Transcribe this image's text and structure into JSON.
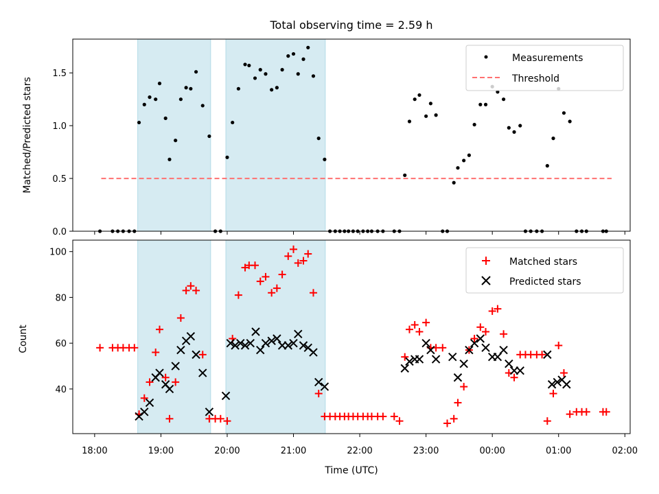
{
  "chart_data": [
    {
      "type": "scatter",
      "title": "Total observing time = 2.59 h",
      "xlabel": "",
      "ylabel": "Matched/Predicted stars",
      "xlim_hours": [
        17.67,
        26.08
      ],
      "ylim": [
        0,
        1.82
      ],
      "yticks": [
        0.0,
        0.5,
        1.0,
        1.5
      ],
      "ytick_labels": [
        "0.0",
        "0.5",
        "1.0",
        "1.5"
      ],
      "legend_position": "top-right",
      "shaded_intervals_hours": [
        [
          18.65,
          19.75
        ],
        [
          19.98,
          21.48
        ]
      ],
      "shade_color": "#add8e6",
      "threshold": {
        "name": "Threshold",
        "value": 0.5,
        "x_range_hours": [
          18.1,
          25.8
        ],
        "color": "#ff7070"
      },
      "series": [
        {
          "name": "Measurements",
          "color": "#000000",
          "marker": "dot",
          "x_hours": [
            18.08,
            18.27,
            18.35,
            18.43,
            18.52,
            18.6,
            18.67,
            18.75,
            18.83,
            18.92,
            18.98,
            19.07,
            19.13,
            19.22,
            19.3,
            19.38,
            19.45,
            19.53,
            19.63,
            19.73,
            19.82,
            19.9,
            20.0,
            20.08,
            20.17,
            20.27,
            20.33,
            20.42,
            20.5,
            20.58,
            20.67,
            20.75,
            20.83,
            20.92,
            21.0,
            21.07,
            21.15,
            21.22,
            21.3,
            21.38,
            21.47,
            21.55,
            21.63,
            21.7,
            21.77,
            21.83,
            21.9,
            21.97,
            22.05,
            22.12,
            22.18,
            22.27,
            22.35,
            22.52,
            22.6,
            22.68,
            22.75,
            22.83,
            22.9,
            23.0,
            23.07,
            23.15,
            23.25,
            23.32,
            23.42,
            23.48,
            23.57,
            23.65,
            23.73,
            23.82,
            23.9,
            24.0,
            24.08,
            24.17,
            24.25,
            24.33,
            24.42,
            24.5,
            24.58,
            24.67,
            24.75,
            24.83,
            24.92,
            25.0,
            25.08,
            25.17,
            25.27,
            25.35,
            25.42,
            25.67,
            25.72
          ],
          "y": [
            0.0,
            0.0,
            0.0,
            0.0,
            0.0,
            0.0,
            1.03,
            1.2,
            1.27,
            1.25,
            1.4,
            1.07,
            0.68,
            0.86,
            1.25,
            1.36,
            1.35,
            1.51,
            1.19,
            0.9,
            0.0,
            0.0,
            0.7,
            1.03,
            1.35,
            1.58,
            1.57,
            1.45,
            1.53,
            1.49,
            1.34,
            1.36,
            1.53,
            1.66,
            1.68,
            1.49,
            1.63,
            1.74,
            1.47,
            0.88,
            0.68,
            0.0,
            0.0,
            0.0,
            0.0,
            0.0,
            0.0,
            0.0,
            0.0,
            0.0,
            0.0,
            0.0,
            0.0,
            0.0,
            0.0,
            0.53,
            1.04,
            1.25,
            1.29,
            1.09,
            1.21,
            1.1,
            0.0,
            0.0,
            0.46,
            0.6,
            0.67,
            0.72,
            1.01,
            1.2,
            1.2,
            1.37,
            1.32,
            1.25,
            0.98,
            0.94,
            1.0,
            0.0,
            0.0,
            0.0,
            0.0,
            0.62,
            0.88,
            1.35,
            1.12,
            1.04,
            0.0,
            0.0,
            0.0,
            0.0,
            0.0
          ]
        }
      ]
    },
    {
      "type": "scatter",
      "title": "",
      "xlabel": "Time (UTC)",
      "ylabel": "Count",
      "xlim_hours": [
        17.67,
        26.08
      ],
      "ylim": [
        20.5,
        105
      ],
      "yticks": [
        40,
        60,
        80,
        100
      ],
      "ytick_labels": [
        "40",
        "60",
        "80",
        "100"
      ],
      "xticks_hours": [
        18,
        19,
        20,
        21,
        22,
        23,
        24,
        25,
        26
      ],
      "xtick_labels": [
        "18:00",
        "19:00",
        "20:00",
        "21:00",
        "22:00",
        "23:00",
        "00:00",
        "01:00",
        "02:00"
      ],
      "legend_position": "top-right",
      "shaded_intervals_hours": [
        [
          18.65,
          19.75
        ],
        [
          19.98,
          21.48
        ]
      ],
      "series": [
        {
          "name": "Matched stars",
          "color": "#ff0000",
          "marker": "plus",
          "x_hours": [
            18.08,
            18.27,
            18.35,
            18.43,
            18.52,
            18.6,
            18.67,
            18.75,
            18.83,
            18.92,
            18.98,
            19.07,
            19.13,
            19.22,
            19.3,
            19.38,
            19.45,
            19.53,
            19.63,
            19.73,
            19.82,
            19.9,
            20.0,
            20.08,
            20.17,
            20.27,
            20.33,
            20.42,
            20.5,
            20.58,
            20.67,
            20.75,
            20.83,
            20.92,
            21.0,
            21.07,
            21.15,
            21.22,
            21.3,
            21.38,
            21.47,
            21.55,
            21.63,
            21.7,
            21.77,
            21.83,
            21.9,
            21.97,
            22.05,
            22.12,
            22.18,
            22.27,
            22.35,
            22.52,
            22.6,
            22.68,
            22.75,
            22.83,
            22.9,
            23.0,
            23.07,
            23.15,
            23.25,
            23.32,
            23.42,
            23.48,
            23.57,
            23.65,
            23.73,
            23.82,
            23.9,
            24.0,
            24.08,
            24.17,
            24.25,
            24.33,
            24.42,
            24.5,
            24.58,
            24.67,
            24.75,
            24.83,
            24.92,
            25.0,
            25.08,
            25.17,
            25.27,
            25.35,
            25.42,
            25.67,
            25.72
          ],
          "y": [
            58,
            58,
            58,
            58,
            58,
            58,
            29,
            36,
            43,
            56,
            66,
            45,
            27,
            43,
            71,
            83,
            85,
            83,
            55,
            27,
            27,
            27,
            26,
            62,
            81,
            93,
            94,
            94,
            87,
            89,
            82,
            84,
            90,
            98,
            101,
            95,
            96,
            99,
            82,
            38,
            28,
            28,
            28,
            28,
            28,
            28,
            28,
            28,
            28,
            28,
            28,
            28,
            28,
            28,
            26,
            54,
            66,
            68,
            65,
            69,
            58,
            58,
            58,
            25,
            27,
            34,
            41,
            57,
            62,
            67,
            65,
            74,
            75,
            64,
            47,
            45,
            55,
            55,
            55,
            55,
            55,
            26,
            38,
            59,
            47,
            29,
            30,
            30,
            30,
            30,
            30
          ]
        },
        {
          "name": "Predicted stars",
          "color": "#000000",
          "marker": "x",
          "x_hours": [
            18.67,
            18.75,
            18.83,
            18.92,
            18.98,
            19.07,
            19.13,
            19.22,
            19.3,
            19.38,
            19.45,
            19.53,
            19.63,
            19.73,
            19.98,
            20.05,
            20.12,
            20.2,
            20.27,
            20.35,
            20.43,
            20.5,
            20.58,
            20.67,
            20.75,
            20.83,
            20.92,
            21.0,
            21.07,
            21.15,
            21.22,
            21.3,
            21.38,
            21.47,
            22.68,
            22.75,
            22.83,
            22.9,
            23.0,
            23.07,
            23.15,
            23.4,
            23.48,
            23.57,
            23.65,
            23.73,
            23.82,
            23.9,
            24.0,
            24.08,
            24.17,
            24.25,
            24.33,
            24.42,
            24.83,
            24.9,
            24.98,
            25.05,
            25.12
          ],
          "y": [
            28,
            30,
            34,
            45,
            47,
            42,
            40,
            50,
            57,
            61,
            63,
            55,
            47,
            30,
            37,
            60,
            59,
            60,
            59,
            60,
            65,
            57,
            60,
            61,
            62,
            59,
            59,
            60,
            64,
            59,
            58,
            56,
            43,
            41,
            49,
            52,
            53,
            53,
            60,
            57,
            53,
            54,
            45,
            51,
            57,
            60,
            62,
            58,
            54,
            54,
            57,
            51,
            48,
            48,
            55,
            42,
            43,
            44,
            42
          ]
        }
      ]
    }
  ]
}
